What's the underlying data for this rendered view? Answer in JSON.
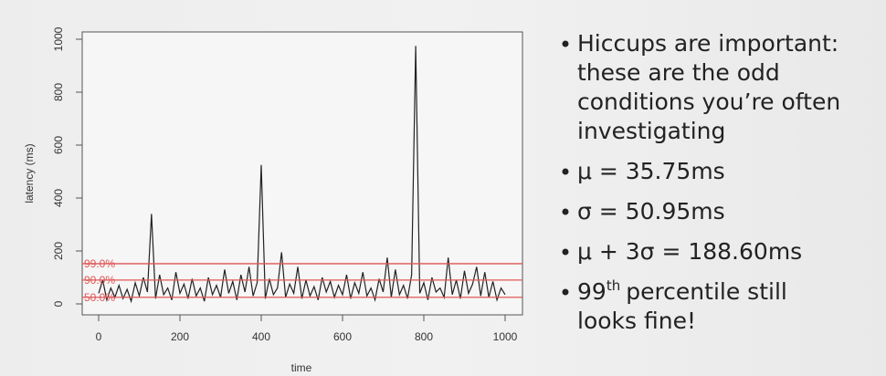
{
  "chart_data": {
    "type": "line",
    "x_label": "time",
    "y_label": "latency (ms)",
    "x": [
      0,
      10,
      20,
      30,
      40,
      50,
      60,
      70,
      80,
      90,
      100,
      110,
      120,
      130,
      140,
      150,
      160,
      170,
      180,
      190,
      200,
      210,
      220,
      230,
      240,
      250,
      260,
      270,
      280,
      290,
      300,
      310,
      320,
      330,
      340,
      350,
      360,
      370,
      380,
      390,
      400,
      410,
      420,
      430,
      440,
      450,
      460,
      470,
      480,
      490,
      500,
      510,
      520,
      530,
      540,
      550,
      560,
      570,
      580,
      590,
      600,
      610,
      620,
      630,
      640,
      650,
      660,
      670,
      680,
      690,
      700,
      710,
      720,
      730,
      740,
      750,
      760,
      770,
      780,
      790,
      800,
      810,
      820,
      830,
      840,
      850,
      860,
      870,
      880,
      890,
      900,
      910,
      920,
      930,
      940,
      950,
      960,
      970,
      980,
      990,
      1000
    ],
    "series": [
      {
        "color": "#222222",
        "values": [
          40,
          90,
          15,
          60,
          25,
          70,
          20,
          55,
          10,
          80,
          30,
          100,
          45,
          340,
          20,
          110,
          35,
          60,
          15,
          120,
          40,
          75,
          20,
          95,
          30,
          60,
          10,
          100,
          35,
          70,
          25,
          130,
          40,
          85,
          15,
          110,
          45,
          140,
          30,
          80,
          525,
          20,
          95,
          35,
          60,
          195,
          25,
          75,
          40,
          140,
          20,
          90,
          30,
          65,
          15,
          100,
          45,
          85,
          25,
          70,
          35,
          110,
          20,
          80,
          40,
          120,
          30,
          60,
          15,
          95,
          45,
          175,
          25,
          130,
          35,
          70,
          20,
          110,
          975,
          40,
          80,
          15,
          100,
          45,
          60,
          25,
          175,
          35,
          90,
          20,
          125,
          40,
          75,
          140,
          30,
          120,
          25,
          85,
          15,
          60,
          35
        ]
      }
    ],
    "hlines": [
      {
        "label": "99.0%",
        "value": 152
      },
      {
        "label": "90.0%",
        "value": 90
      },
      {
        "label": "50.0%",
        "value": 25
      }
    ],
    "hline_color": "#e05555",
    "xlim": [
      0,
      1000
    ],
    "ylim": [
      0,
      1000
    ],
    "xticks": [
      0,
      200,
      400,
      600,
      800,
      1000
    ],
    "yticks": [
      0,
      200,
      400,
      600,
      800,
      1000
    ]
  },
  "slide": {
    "bullets": [
      {
        "lines": [
          "Hiccups are important:",
          "these are the odd",
          "conditions you’re often",
          "investigating"
        ]
      },
      {
        "lines": [
          "μ = 35.75ms"
        ]
      },
      {
        "lines": [
          "σ = 50.95ms"
        ]
      },
      {
        "lines": [
          "μ + 3σ = 188.60ms"
        ]
      },
      {
        "number": "99",
        "superscript": "th",
        "lines": [
          "percentile still",
          "looks fine!"
        ]
      }
    ]
  }
}
